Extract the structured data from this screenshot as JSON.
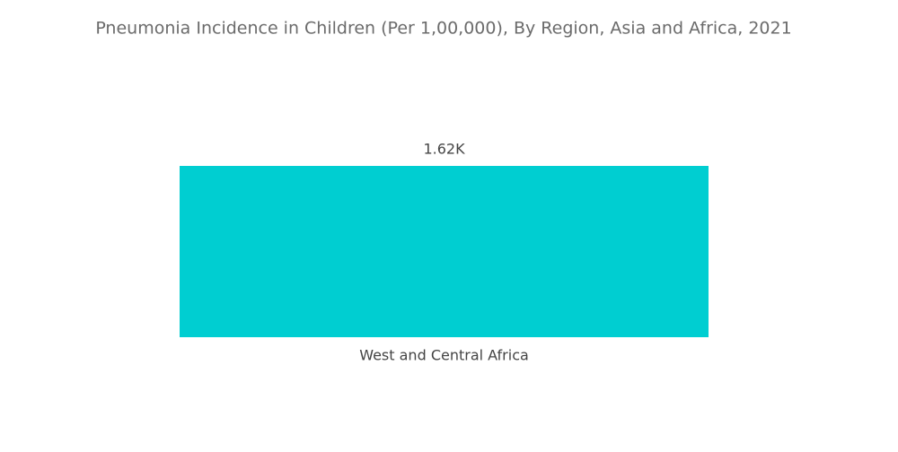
{
  "chart_data": {
    "type": "bar",
    "title": "Pneumonia Incidence in Children (Per 1,00,000), By Region, Asia and Africa, 2021",
    "categories": [
      "West and Central Africa"
    ],
    "values": [
      1620
    ],
    "value_labels": [
      "1.62K"
    ],
    "color": "#00ced1"
  }
}
